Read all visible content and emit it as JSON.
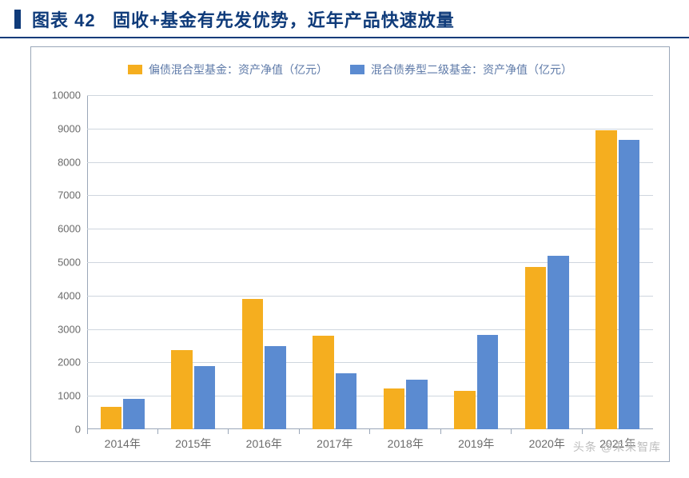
{
  "title": {
    "prefix": "图表 42",
    "text": "固收+基金有先发优势，近年产品快速放量",
    "color": "#0f3b7a",
    "block_color": "#0f3b7a",
    "underline_color": "#0f3b7a",
    "fontsize": 22
  },
  "chart": {
    "type": "bar-grouped",
    "background_color": "#ffffff",
    "border_color": "#9aa7b8",
    "grid_color": "#cfd6de",
    "tick_font_color": "#6b6b6b",
    "tick_fontsize": 13,
    "xlabel_color": "#6b6b6b",
    "xlabel_fontsize": 14,
    "legend_fontsize": 14,
    "legend_color": "#5e7aa8",
    "ylim": [
      0,
      10000
    ],
    "ytick_step": 1000,
    "bar_width": 0.3,
    "categories": [
      "2014年",
      "2015年",
      "2016年",
      "2017年",
      "2018年",
      "2019年",
      "2020年",
      "2021年"
    ],
    "series": [
      {
        "name": "偏债混合型基金：资产净值（亿元）",
        "color": "#f5ae1f",
        "values": [
          680,
          2380,
          3900,
          2800,
          1220,
          1160,
          4850,
          8950
        ]
      },
      {
        "name": "混合债券型二级基金：资产净值（亿元）",
        "color": "#5b8bd1",
        "values": [
          900,
          1900,
          2500,
          1680,
          1480,
          2820,
          5200,
          8650
        ]
      }
    ]
  },
  "watermark": "头条 @未来智库"
}
